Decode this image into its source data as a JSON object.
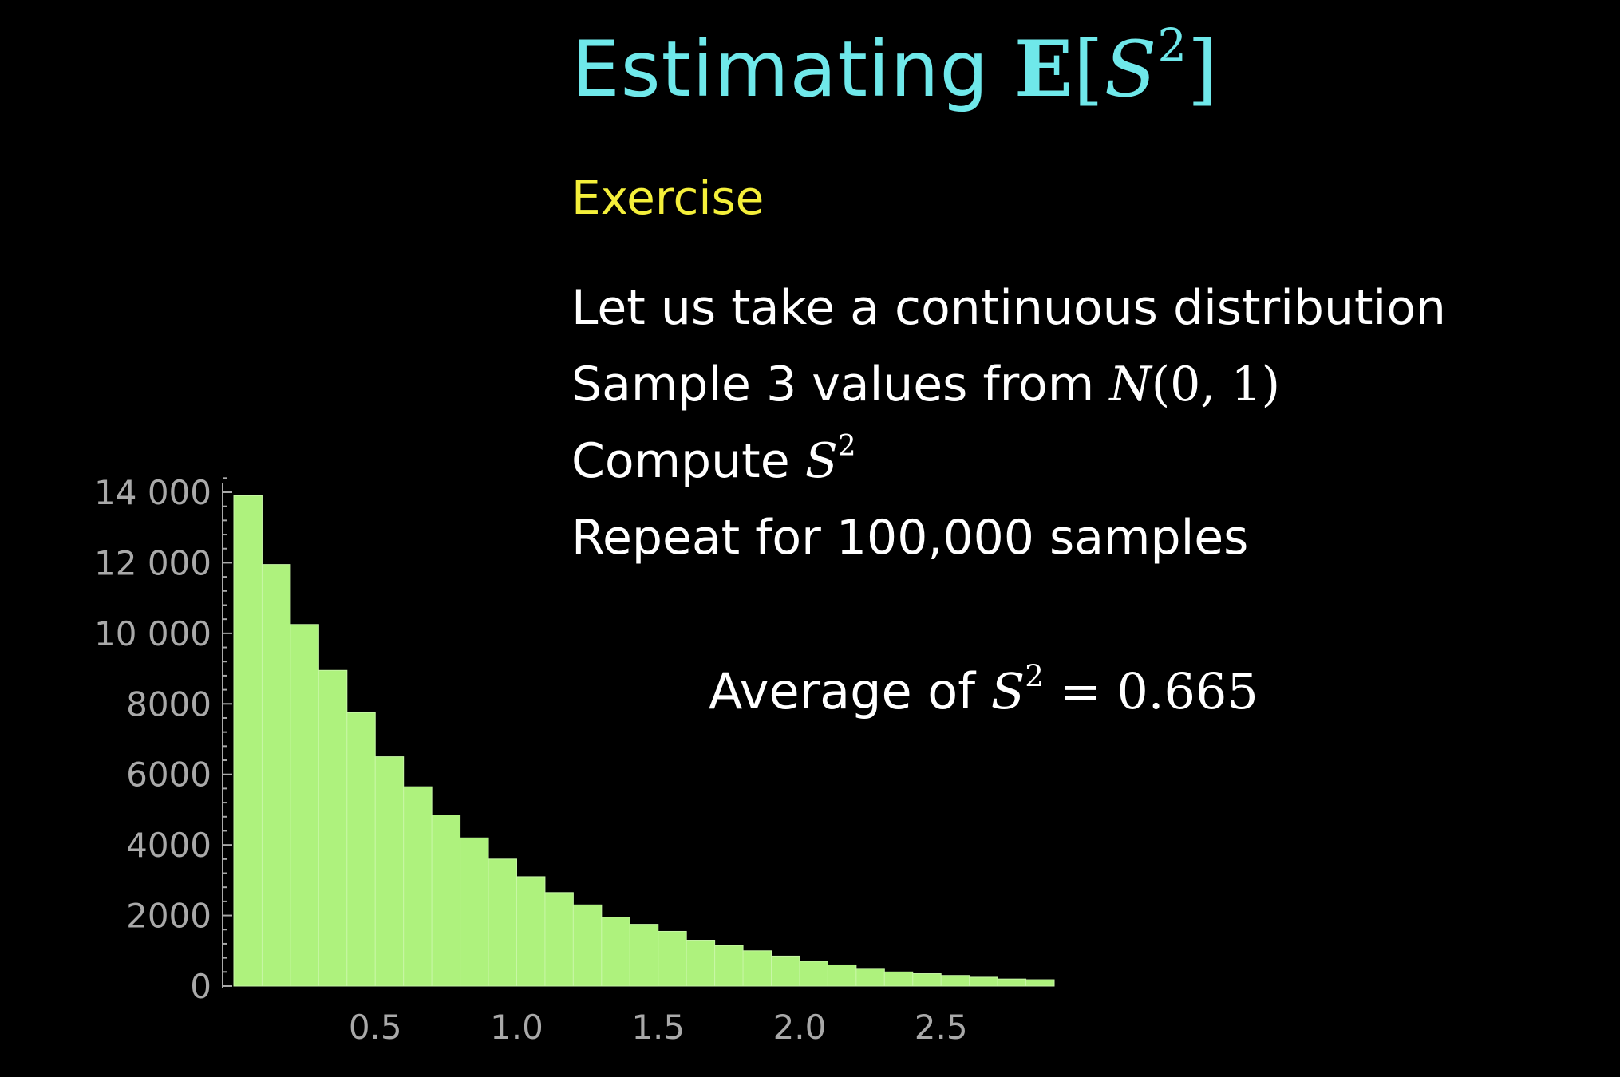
{
  "slide": {
    "title_word": "Estimating",
    "title_math_e": "E",
    "title_math_open": "[",
    "title_math_s": "S",
    "title_math_exp": "2",
    "title_math_close": "]",
    "exercise_label": "Exercise",
    "line1": "Let us take a continuous distribution",
    "line2_text": "Sample 3 values from",
    "line2_math_n": "N",
    "line2_math_args": "(0, 1)",
    "line3_text": "Compute",
    "line3_math_s": "S",
    "line3_math_exp": "2",
    "line4": "Repeat for 100,000 samples",
    "average_text": "Average of",
    "average_math_s": "S",
    "average_math_exp": "2",
    "average_math_value": "= 0.665"
  },
  "colors": {
    "title": "#6fe8ea",
    "exercise": "#f4ef3a",
    "bars": "#aef27d",
    "axis": "#a9a9a9"
  },
  "chart_data": {
    "type": "bar",
    "title": "",
    "xlabel": "",
    "ylabel": "",
    "bin_width": 0.1,
    "bin_starts": [
      0.0,
      0.1,
      0.2,
      0.3,
      0.4,
      0.5,
      0.6,
      0.7,
      0.8,
      0.9,
      1.0,
      1.1,
      1.2,
      1.3,
      1.4,
      1.5,
      1.6,
      1.7,
      1.8,
      1.9,
      2.0,
      2.1,
      2.2,
      2.3,
      2.4,
      2.5,
      2.6,
      2.7,
      2.8
    ],
    "values": [
      13900,
      11950,
      10250,
      8950,
      7750,
      6500,
      5650,
      4850,
      4200,
      3600,
      3100,
      2650,
      2300,
      1950,
      1750,
      1550,
      1300,
      1150,
      1000,
      850,
      700,
      600,
      500,
      400,
      350,
      300,
      250,
      200,
      180
    ],
    "xlim": [
      0.0,
      2.9
    ],
    "ylim": [
      0,
      14400
    ],
    "x_ticks": [
      0.5,
      1.0,
      1.5,
      2.0,
      2.5
    ],
    "x_tick_labels": [
      "0.5",
      "1.0",
      "1.5",
      "2.0",
      "2.5"
    ],
    "y_ticks": [
      0,
      2000,
      4000,
      6000,
      8000,
      10000,
      12000,
      14000
    ],
    "y_tick_labels": [
      "0",
      "2000",
      "4000",
      "6000",
      "8000",
      "10 000",
      "12 000",
      "14 000"
    ],
    "grid": false
  }
}
